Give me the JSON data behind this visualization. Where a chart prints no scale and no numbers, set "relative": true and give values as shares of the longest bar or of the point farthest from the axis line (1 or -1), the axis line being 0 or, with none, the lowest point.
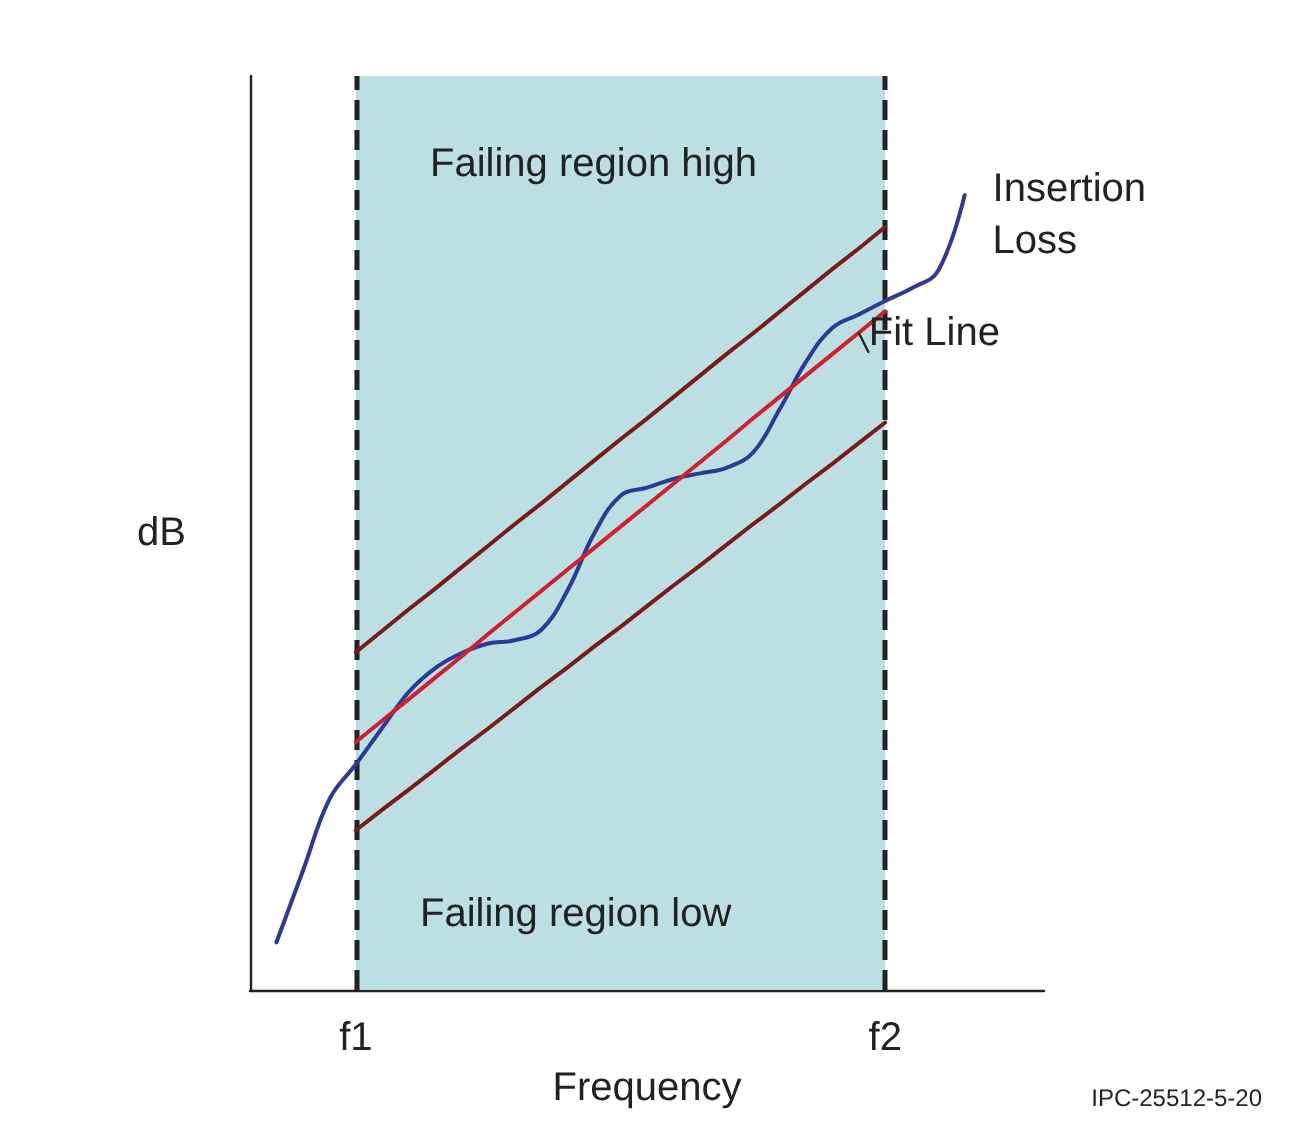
{
  "chart_data": {
    "type": "line",
    "relative": true,
    "xlabel": "Frequency",
    "ylabel": "dB",
    "categories": [
      null,
      null,
      null,
      null,
      "f1",
      null,
      null,
      null,
      null,
      null,
      null,
      null,
      null,
      null,
      null,
      null,
      null,
      null,
      null,
      null,
      null,
      null,
      null,
      null,
      "f2",
      null,
      null,
      null,
      null,
      null,
      null
    ],
    "series": [
      {
        "name": "Insertion Loss",
        "color": "#2b3a93",
        "values": [
          null,
          0.06,
          0.15,
          0.24,
          0.284,
          0.33,
          0.375,
          0.405,
          0.424,
          0.436,
          0.44,
          0.453,
          0.503,
          0.574,
          0.622,
          0.632,
          0.643,
          0.65,
          0.657,
          0.676,
          0.73,
          0.79,
          0.833,
          0.85,
          0.867,
          0.883,
          0.905,
          1,
          null,
          null,
          null
        ]
      },
      {
        "name": "Fit Line",
        "color": "#d0202e",
        "values": [
          null,
          null,
          null,
          null,
          0.312,
          0.339,
          0.366,
          0.393,
          0.42,
          0.448,
          0.475,
          0.502,
          0.529,
          0.556,
          0.583,
          0.61,
          0.637,
          0.664,
          0.691,
          0.719,
          0.746,
          0.773,
          0.8,
          0.827,
          0.854,
          null,
          null,
          null,
          null,
          null,
          null
        ]
      },
      {
        "color": "#7a1a1a",
        "values": [
          null,
          null,
          null,
          null,
          0.425,
          0.452,
          0.479,
          0.505,
          0.532,
          0.559,
          0.586,
          0.612,
          0.639,
          0.666,
          0.693,
          0.719,
          0.746,
          0.773,
          0.8,
          0.826,
          0.853,
          0.88,
          0.907,
          0.933,
          0.96,
          null,
          null,
          null,
          null,
          null,
          null
        ]
      },
      {
        "color": "#7a1a1a",
        "values": [
          null,
          null,
          null,
          null,
          0.201,
          0.227,
          0.252,
          0.278,
          0.304,
          0.329,
          0.355,
          0.381,
          0.406,
          0.432,
          0.457,
          0.483,
          0.509,
          0.534,
          0.56,
          0.586,
          0.611,
          0.637,
          0.662,
          0.688,
          0.714,
          null,
          null,
          null,
          null,
          null,
          null
        ]
      }
    ],
    "bands": [
      {
        "axis": "x",
        "from": "f1",
        "to": "f2",
        "color": "#bcdfe3"
      }
    ],
    "ref_lines": [
      {
        "axis": "x",
        "value": "f1",
        "color": "#222222",
        "line_style": "dashed"
      },
      {
        "axis": "x",
        "value": "f2",
        "color": "#222222",
        "line_style": "dashed"
      }
    ],
    "annotations": [
      "Failing region high",
      "Failing region low",
      "IPC-25512-5-20"
    ],
    "marker": "none",
    "line_style": "solid",
    "grid": false,
    "legend": false
  }
}
